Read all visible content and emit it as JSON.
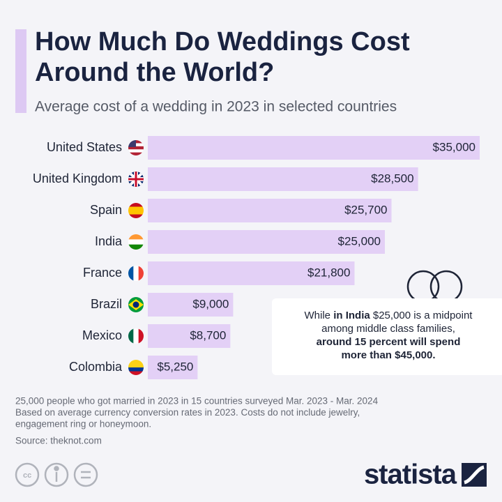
{
  "chart_data": {
    "type": "bar",
    "orientation": "horizontal",
    "title": [
      "How Much Do Weddings Cost",
      "Around the World?"
    ],
    "subtitle": "Average cost of a wedding in 2023 in selected countries",
    "categories": [
      "United States",
      "United Kingdom",
      "Spain",
      "India",
      "France",
      "Brazil",
      "Mexico",
      "Colombia"
    ],
    "values": [
      35000,
      28500,
      25700,
      25000,
      21800,
      9000,
      8700,
      5250
    ],
    "value_labels": [
      "$35,000",
      "$28,500",
      "$25,700",
      "$25,000",
      "$21,800",
      "$9,000",
      "$8,700",
      "$5,250"
    ],
    "color": "#e3d0f6",
    "annotation": [
      [
        {
          "text": "While ",
          "bold": false
        },
        {
          "text": "in India",
          "bold": true
        },
        {
          "text": " $25,000 is a midpoint",
          "bold": false
        }
      ],
      [
        {
          "text": "among middle class families,",
          "bold": false
        }
      ],
      [
        {
          "text": "around 15 percent will spend",
          "bold": true
        }
      ],
      [
        {
          "text": "more than $45,000.",
          "bold": true
        }
      ]
    ],
    "notes": [
      "25,000 people who got married in 2023 in 15 countries surveyed Mar. 2023 - Mar. 2024",
      "Based on average currency conversion rates in 2023. Costs do not include jewelry,",
      "engagement ring or honeymoon."
    ],
    "source": "Source: theknot.com",
    "brand": "statista"
  }
}
